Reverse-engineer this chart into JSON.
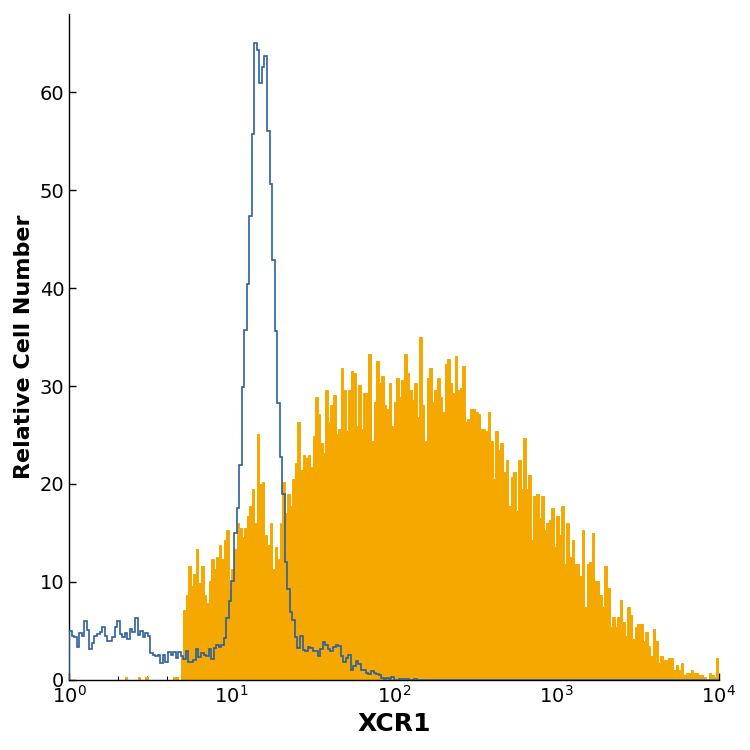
{
  "title": "",
  "xlabel": "XCR1",
  "ylabel": "Relative Cell Number",
  "xlim_log": [
    0,
    4
  ],
  "ylim": [
    0,
    68
  ],
  "yticks": [
    0,
    10,
    20,
    30,
    40,
    50,
    60
  ],
  "background_color": "#ffffff",
  "blue_color": "#2e5f9e",
  "orange_color": "#f5a800",
  "xlabel_fontsize": 18,
  "ylabel_fontsize": 16,
  "tick_fontsize": 14,
  "n_bins": 256,
  "seed": 7
}
